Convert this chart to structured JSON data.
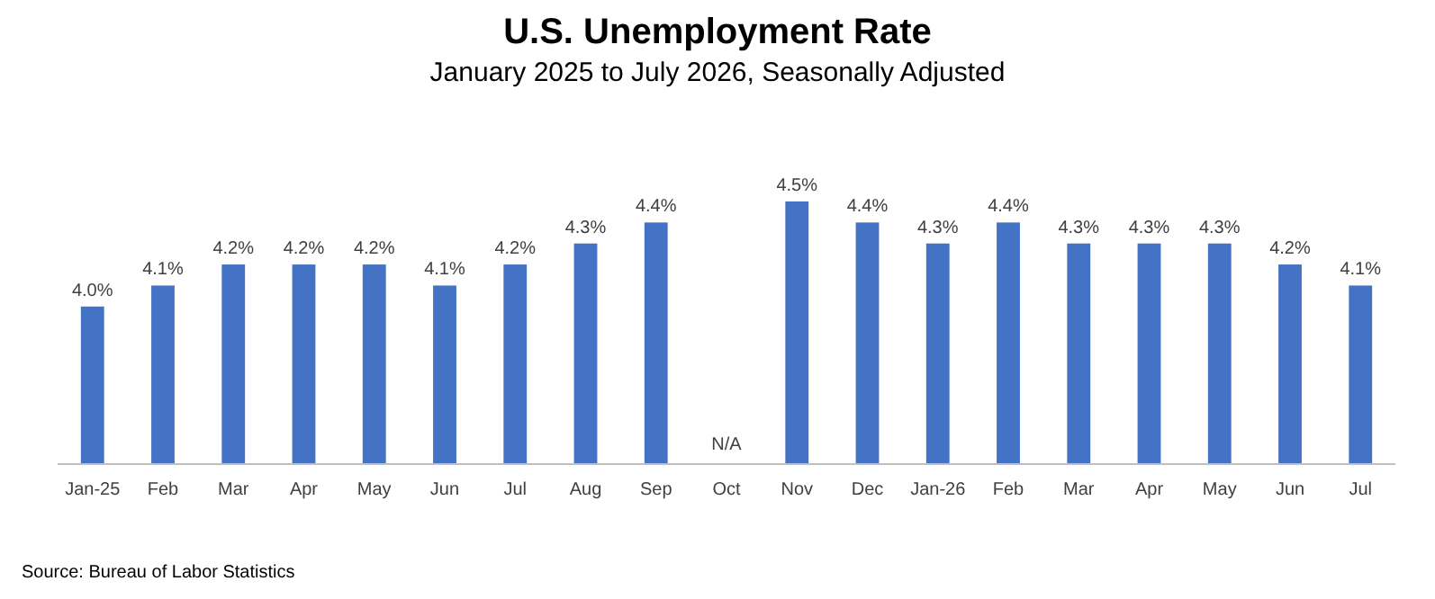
{
  "chart_data": {
    "type": "bar",
    "title": "U.S. Unemployment Rate",
    "subtitle": "January 2025 to July 2026, Seasonally Adjusted",
    "categories": [
      "Jan-25",
      "Feb",
      "Mar",
      "Apr",
      "May",
      "Jun",
      "Jul",
      "Aug",
      "Sep",
      "Oct",
      "Nov",
      "Dec",
      "Jan-26",
      "Feb",
      "Mar",
      "Apr",
      "May",
      "Jun",
      "Jul"
    ],
    "values": [
      4.0,
      4.1,
      4.2,
      4.2,
      4.2,
      4.1,
      4.2,
      4.3,
      4.4,
      null,
      4.5,
      4.4,
      4.3,
      4.4,
      4.3,
      4.3,
      4.3,
      4.2,
      4.1
    ],
    "value_labels": [
      "4.0%",
      "4.1%",
      "4.2%",
      "4.2%",
      "4.2%",
      "4.1%",
      "4.2%",
      "4.3%",
      "4.4%",
      "N/A",
      "4.5%",
      "4.4%",
      "4.3%",
      "4.4%",
      "4.3%",
      "4.3%",
      "4.3%",
      "4.2%",
      "4.1%"
    ],
    "color": "#4472c4",
    "ylim": [
      3.25,
      4.5
    ],
    "tick_labels": "x",
    "annotations": [
      "Source: Bureau of Labor Statistics"
    ]
  }
}
